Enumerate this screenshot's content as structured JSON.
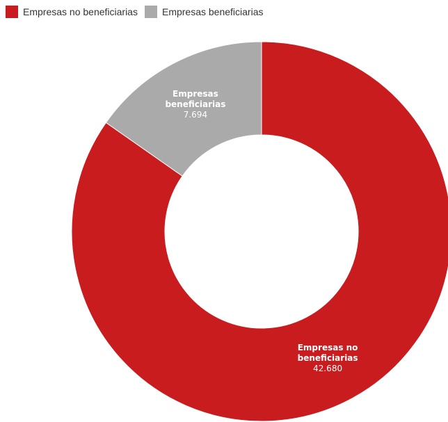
{
  "colors": {
    "no_beneficiarias": "#c91c1f",
    "beneficiarias": "#aaaaaa"
  },
  "legend": {
    "items": [
      {
        "label": "Empresas no beneficiarias",
        "color_key": "no_beneficiarias"
      },
      {
        "label": "Empresas beneficiarias",
        "color_key": "beneficiarias"
      }
    ]
  },
  "chart_data": {
    "type": "pie",
    "variant": "donut",
    "legend_position": "top-left",
    "title": "",
    "slices": [
      {
        "name": "Empresas no beneficiarias",
        "value": 42680,
        "value_label": "42.680",
        "label_lines": [
          "Empresas no",
          "beneficiarias"
        ],
        "color_key": "no_beneficiarias"
      },
      {
        "name": "Empresas beneficiarias",
        "value": 7694,
        "value_label": "7.694",
        "label_lines": [
          "Empresas",
          "beneficiarias"
        ],
        "color_key": "beneficiarias"
      }
    ]
  }
}
